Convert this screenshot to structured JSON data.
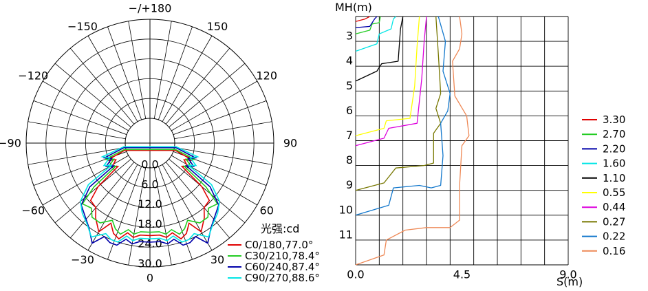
{
  "chart_data": [
    {
      "type": "polar",
      "unit_label": "光强:cd",
      "angle_labels": [
        {
          "angle": 180,
          "text": "−/+180"
        },
        {
          "angle": -150,
          "text": "−150"
        },
        {
          "angle": 150,
          "text": "150"
        },
        {
          "angle": -120,
          "text": "−120"
        },
        {
          "angle": 120,
          "text": "120"
        },
        {
          "angle": -90,
          "text": "−90"
        },
        {
          "angle": 90,
          "text": "90"
        },
        {
          "angle": -60,
          "text": "−60"
        },
        {
          "angle": 60,
          "text": "60"
        },
        {
          "angle": -30,
          "text": "−30"
        },
        {
          "angle": 30,
          "text": "30"
        },
        {
          "angle": 0,
          "text": "0"
        }
      ],
      "radial_labels": [
        "0.0",
        "6.0",
        "12.0",
        "18.0",
        "24.0",
        "30.0"
      ],
      "radial_range": [
        0,
        30
      ],
      "series": [
        {
          "name": "C0/180,77.0°",
          "color": "#e00000",
          "points": [
            [
              -74,
              0.5
            ],
            [
              -68,
              6.5
            ],
            [
              -64,
              4
            ],
            [
              -58,
              6
            ],
            [
              -54,
              4.5
            ],
            [
              -50,
              13
            ],
            [
              -46,
              17.5
            ],
            [
              -40,
              18
            ],
            [
              -36,
              20.5
            ],
            [
              -30,
              23.5
            ],
            [
              -26,
              19.5
            ],
            [
              -22,
              22
            ],
            [
              -18,
              23
            ],
            [
              -14,
              20.5
            ],
            [
              -10,
              21.5
            ],
            [
              -6,
              20.5
            ],
            [
              0,
              20.5
            ],
            [
              6,
              20.5
            ],
            [
              10,
              21.5
            ],
            [
              14,
              20.5
            ],
            [
              18,
              23
            ],
            [
              22,
              22
            ],
            [
              26,
              19.5
            ],
            [
              30,
              23.5
            ],
            [
              36,
              20.5
            ],
            [
              40,
              18
            ],
            [
              46,
              17.5
            ],
            [
              50,
              13
            ],
            [
              54,
              4.5
            ],
            [
              58,
              6
            ],
            [
              64,
              4
            ],
            [
              68,
              6.5
            ],
            [
              74,
              0.5
            ]
          ]
        },
        {
          "name": "C30/210,78.4°",
          "color": "#22cc22",
          "points": [
            [
              -76,
              0.5
            ],
            [
              -70,
              7
            ],
            [
              -66,
              4.5
            ],
            [
              -60,
              7
            ],
            [
              -56,
              5
            ],
            [
              -52,
              14
            ],
            [
              -48,
              20
            ],
            [
              -42,
              19
            ],
            [
              -38,
              21
            ],
            [
              -32,
              21
            ],
            [
              -26,
              18.5
            ],
            [
              -22,
              20.5
            ],
            [
              -18,
              21.5
            ],
            [
              -14,
              19.5
            ],
            [
              -10,
              20.5
            ],
            [
              -6,
              19.5
            ],
            [
              0,
              19.5
            ],
            [
              6,
              19.5
            ],
            [
              10,
              20.5
            ],
            [
              14,
              19.5
            ],
            [
              18,
              21.5
            ],
            [
              22,
              20.5
            ],
            [
              26,
              18.5
            ],
            [
              32,
              21
            ],
            [
              38,
              21
            ],
            [
              42,
              19
            ],
            [
              48,
              20
            ],
            [
              52,
              14
            ],
            [
              56,
              5
            ],
            [
              60,
              7
            ],
            [
              66,
              4.5
            ],
            [
              70,
              7
            ],
            [
              76,
              0.5
            ]
          ]
        },
        {
          "name": "C60/240,87.4°",
          "color": "#0000aa",
          "points": [
            [
              -80,
              0.5
            ],
            [
              -72,
              7
            ],
            [
              -68,
              5
            ],
            [
              -62,
              7.5
            ],
            [
              -58,
              5.5
            ],
            [
              -54,
              15
            ],
            [
              -48,
              20.5
            ],
            [
              -42,
              22
            ],
            [
              -36,
              24
            ],
            [
              -30,
              27.5
            ],
            [
              -26,
              24
            ],
            [
              -22,
              25
            ],
            [
              -18,
              25
            ],
            [
              -14,
              22.5
            ],
            [
              -10,
              23.5
            ],
            [
              -6,
              22.5
            ],
            [
              0,
              22.5
            ],
            [
              6,
              22.5
            ],
            [
              10,
              23.5
            ],
            [
              14,
              22.5
            ],
            [
              18,
              25
            ],
            [
              22,
              25
            ],
            [
              26,
              24
            ],
            [
              30,
              27.5
            ],
            [
              36,
              24
            ],
            [
              42,
              22
            ],
            [
              48,
              20.5
            ],
            [
              54,
              15
            ],
            [
              58,
              5.5
            ],
            [
              62,
              7.5
            ],
            [
              68,
              5
            ],
            [
              72,
              7
            ],
            [
              80,
              0.5
            ]
          ]
        },
        {
          "name": "C90/270,88.6°",
          "color": "#00e5e5",
          "points": [
            [
              -82,
              0.5
            ],
            [
              -74,
              7.5
            ],
            [
              -70,
              5.5
            ],
            [
              -64,
              8
            ],
            [
              -60,
              6
            ],
            [
              -56,
              15
            ],
            [
              -50,
              20
            ],
            [
              -44,
              22
            ],
            [
              -38,
              23.5
            ],
            [
              -32,
              26
            ],
            [
              -26,
              23
            ],
            [
              -22,
              24
            ],
            [
              -18,
              24
            ],
            [
              -14,
              21.5
            ],
            [
              -10,
              22.5
            ],
            [
              -6,
              21.5
            ],
            [
              0,
              21.5
            ],
            [
              6,
              21.5
            ],
            [
              10,
              22.5
            ],
            [
              14,
              21.5
            ],
            [
              18,
              24
            ],
            [
              22,
              24
            ],
            [
              26,
              23
            ],
            [
              32,
              26
            ],
            [
              38,
              23.5
            ],
            [
              44,
              22
            ],
            [
              50,
              20
            ],
            [
              56,
              15
            ],
            [
              60,
              6
            ],
            [
              64,
              8
            ],
            [
              70,
              5.5
            ],
            [
              74,
              7.5
            ],
            [
              82,
              0.5
            ]
          ]
        }
      ]
    },
    {
      "type": "line",
      "ylabel": "MH(m)",
      "xlabel": "S(m)",
      "xlim": [
        0,
        9
      ],
      "ylim": [
        2,
        12
      ],
      "x_ticks": [
        "0.0",
        "4.5",
        "9.0"
      ],
      "y_ticks": [
        "3",
        "4",
        "5",
        "6",
        "7",
        "8",
        "9",
        "10",
        "11"
      ],
      "series": [
        {
          "name": "3.30",
          "color": "#e00000",
          "points": [
            [
              0,
              2.2
            ],
            [
              0.4,
              2.1
            ],
            [
              0.6,
              2.0
            ]
          ]
        },
        {
          "name": "2.70",
          "color": "#22cc22",
          "points": [
            [
              0,
              2.7
            ],
            [
              0.6,
              2.55
            ],
            [
              0.7,
              2.3
            ],
            [
              1.0,
              2.25
            ],
            [
              1.05,
              2.0
            ]
          ]
        },
        {
          "name": "2.20",
          "color": "#0000aa",
          "points": [
            [
              0,
              2.45
            ],
            [
              0.6,
              2.4
            ],
            [
              0.8,
              2.1
            ],
            [
              0.9,
              2.0
            ]
          ]
        },
        {
          "name": "1.60",
          "color": "#00e5e5",
          "points": [
            [
              0,
              3.4
            ],
            [
              0.9,
              3.1
            ],
            [
              1.0,
              2.7
            ],
            [
              1.5,
              2.5
            ],
            [
              1.6,
              2.1
            ],
            [
              1.7,
              2.0
            ]
          ]
        },
        {
          "name": "1.10",
          "color": "#000000",
          "points": [
            [
              0,
              4.6
            ],
            [
              0.9,
              4.2
            ],
            [
              1.1,
              3.9
            ],
            [
              1.8,
              3.8
            ],
            [
              1.9,
              2.5
            ],
            [
              2.0,
              2.0
            ]
          ]
        },
        {
          "name": "0.55",
          "color": "#ffff00",
          "points": [
            [
              0,
              6.8
            ],
            [
              1.2,
              6.5
            ],
            [
              1.3,
              6.2
            ],
            [
              2.3,
              6.1
            ],
            [
              2.5,
              4.8
            ],
            [
              2.6,
              3.2
            ],
            [
              2.7,
              2.0
            ]
          ]
        },
        {
          "name": "0.44",
          "color": "#dd00dd",
          "points": [
            [
              0,
              7.2
            ],
            [
              1.2,
              6.9
            ],
            [
              1.4,
              6.5
            ],
            [
              2.6,
              6.3
            ],
            [
              2.8,
              4.5
            ],
            [
              2.9,
              3.0
            ],
            [
              3.0,
              2.0
            ]
          ]
        },
        {
          "name": "0.27",
          "color": "#777700",
          "points": [
            [
              0,
              9.0
            ],
            [
              1.2,
              8.7
            ],
            [
              1.7,
              8.1
            ],
            [
              2.9,
              8.0
            ],
            [
              3.3,
              7.9
            ],
            [
              3.3,
              6.7
            ],
            [
              3.6,
              6.3
            ],
            [
              3.4,
              5.7
            ],
            [
              3.6,
              5.1
            ],
            [
              3.5,
              3.5
            ],
            [
              3.4,
              2.0
            ]
          ]
        },
        {
          "name": "0.22",
          "color": "#1177cc",
          "points": [
            [
              0,
              10.0
            ],
            [
              1.4,
              9.6
            ],
            [
              1.6,
              8.9
            ],
            [
              2.7,
              8.8
            ],
            [
              3.2,
              8.9
            ],
            [
              3.6,
              8.8
            ],
            [
              3.7,
              7.6
            ],
            [
              3.6,
              6.3
            ],
            [
              3.9,
              5.8
            ],
            [
              4.0,
              5.1
            ],
            [
              3.7,
              4.2
            ],
            [
              3.8,
              3.0
            ],
            [
              3.5,
              2.0
            ]
          ]
        },
        {
          "name": "0.16",
          "color": "#ee8855",
          "points": [
            [
              0,
              12.0
            ],
            [
              1.2,
              11.6
            ],
            [
              1.3,
              11.0
            ],
            [
              2.1,
              10.6
            ],
            [
              3.0,
              10.5
            ],
            [
              4.0,
              10.5
            ],
            [
              4.4,
              10.2
            ],
            [
              4.4,
              8.8
            ],
            [
              4.5,
              7.2
            ],
            [
              4.8,
              6.8
            ],
            [
              4.7,
              6.0
            ],
            [
              4.2,
              5.2
            ],
            [
              4.1,
              3.8
            ],
            [
              4.4,
              3.3
            ],
            [
              4.5,
              2.7
            ],
            [
              4.4,
              2.0
            ]
          ]
        }
      ]
    }
  ]
}
